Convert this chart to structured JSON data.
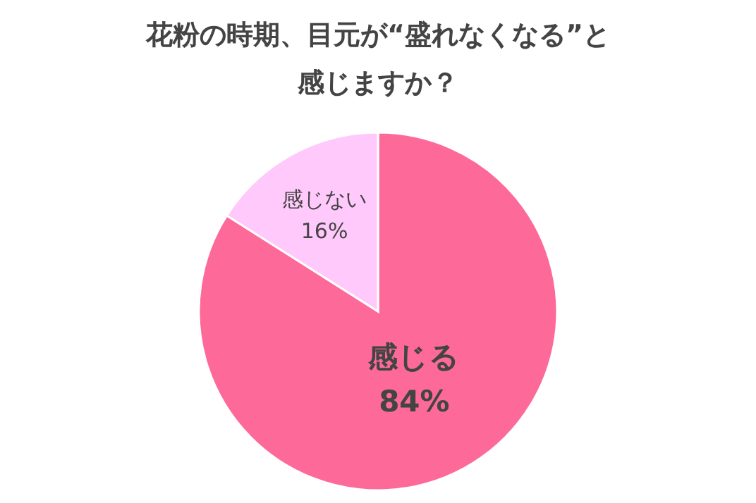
{
  "chart_data": {
    "type": "pie",
    "title": "花粉の時期、目元が“盛れなくなる”と感じますか？",
    "categories": [
      "感じる",
      "感じない"
    ],
    "values": [
      84,
      16
    ],
    "value_labels": [
      "84%",
      "16%"
    ],
    "colors": [
      "#fd6a9a",
      "#ffc9fb"
    ],
    "legend": false
  }
}
